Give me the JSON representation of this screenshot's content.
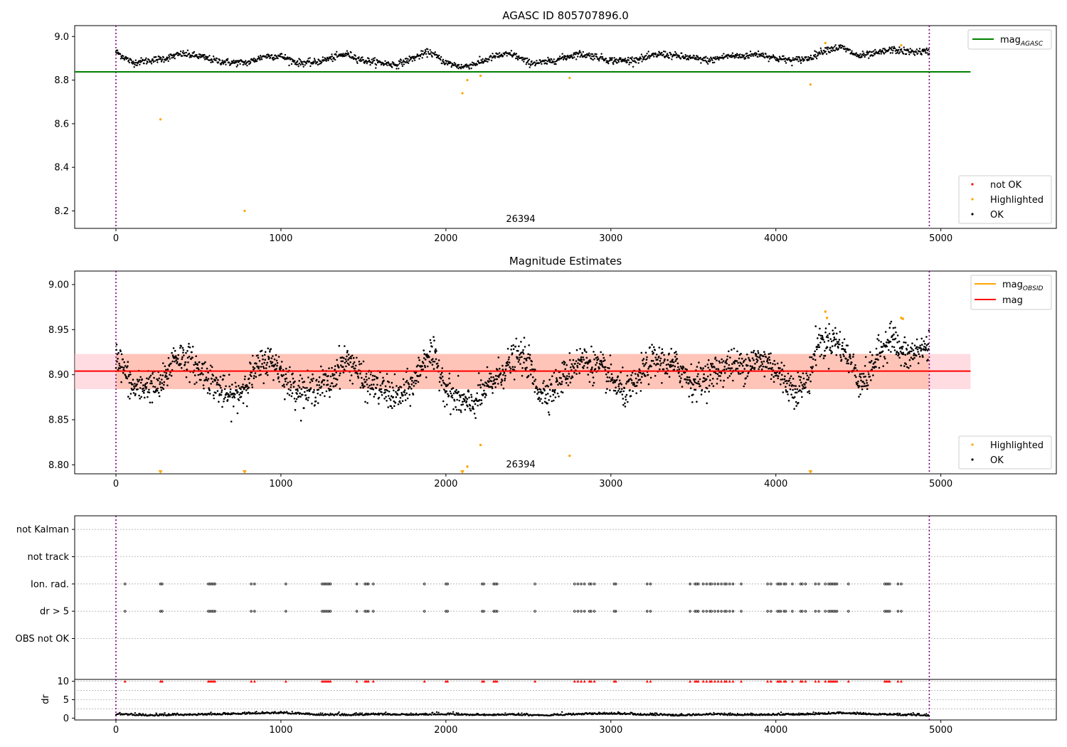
{
  "chart_data": [
    {
      "type": "scatter",
      "title": "AGASC ID 805707896.0",
      "xlabel": "",
      "ylabel": "",
      "xlim": [
        -250,
        5700
      ],
      "ylim": [
        8.12,
        9.05
      ],
      "x_ticks": [
        0,
        1000,
        2000,
        3000,
        4000,
        5000
      ],
      "y_ticks": [
        8.2,
        8.4,
        8.6,
        8.8,
        9.0
      ],
      "y_tick_labels": [
        "8.2",
        "8.4",
        "8.6",
        "8.8",
        "9.0"
      ],
      "grid": false,
      "vlines": [
        0,
        4930
      ],
      "obsid_label": {
        "x": 2450,
        "text": "26394"
      },
      "reference_lines": [
        {
          "name": "mag_AGASC",
          "label_main": "mag",
          "label_sub": "AGASC",
          "value": 8.838,
          "x_range": [
            -250,
            5180
          ],
          "color": "#008000"
        }
      ],
      "legend_upper": {
        "placement": "upper right",
        "entries": [
          {
            "label_main": "mag",
            "label_sub": "AGASC",
            "color": "#008000",
            "marker": "line"
          }
        ]
      },
      "legend_lower": {
        "placement": "lower right",
        "entries": [
          {
            "label": "not OK",
            "color": "#ff0000",
            "marker": "dot"
          },
          {
            "label": "Highlighted",
            "color": "#ffa500",
            "marker": "dot"
          },
          {
            "label": "OK",
            "color": "#000000",
            "marker": "dot"
          }
        ]
      },
      "series": [
        {
          "name": "OK",
          "color": "#000000",
          "x_range": [
            0,
            4930
          ],
          "description_trend_x": [
            0,
            100,
            200,
            300,
            400,
            500,
            600,
            700,
            800,
            900,
            1000,
            1100,
            1200,
            1300,
            1400,
            1500,
            1600,
            1700,
            1800,
            1900,
            2000,
            2100,
            2200,
            2300,
            2400,
            2500,
            2600,
            2700,
            2800,
            2900,
            3000,
            3100,
            3200,
            3300,
            3400,
            3500,
            3600,
            3700,
            3800,
            3900,
            4000,
            4100,
            4200,
            4300,
            4400,
            4500,
            4600,
            4700,
            4800,
            4900
          ],
          "trend_y": [
            8.93,
            8.88,
            8.89,
            8.9,
            8.92,
            8.91,
            8.89,
            8.88,
            8.88,
            8.91,
            8.91,
            8.88,
            8.88,
            8.9,
            8.92,
            8.89,
            8.88,
            8.87,
            8.9,
            8.93,
            8.88,
            8.86,
            8.88,
            8.91,
            8.92,
            8.88,
            8.88,
            8.9,
            8.92,
            8.91,
            8.89,
            8.89,
            8.9,
            8.92,
            8.91,
            8.9,
            8.89,
            8.91,
            8.91,
            8.92,
            8.9,
            8.89,
            8.9,
            8.94,
            8.95,
            8.91,
            8.92,
            8.94,
            8.93,
            8.93
          ]
        },
        {
          "name": "Highlighted",
          "color": "#ffa500",
          "x": [
            270,
            780,
            2100,
            2130,
            2210,
            2750,
            4210,
            4300,
            4760
          ],
          "y": [
            8.62,
            8.2,
            8.74,
            8.8,
            8.82,
            8.81,
            8.78,
            8.97,
            8.96
          ]
        }
      ]
    },
    {
      "type": "scatter",
      "title": "Magnitude Estimates",
      "xlabel": "",
      "ylabel": "",
      "xlim": [
        -250,
        5700
      ],
      "ylim": [
        8.79,
        9.015
      ],
      "x_ticks": [
        0,
        1000,
        2000,
        3000,
        4000,
        5000
      ],
      "y_ticks": [
        8.8,
        8.85,
        8.9,
        8.95,
        9.0
      ],
      "y_tick_labels": [
        "8.80",
        "8.85",
        "8.90",
        "8.95",
        "9.00"
      ],
      "grid": false,
      "vlines": [
        0,
        4930
      ],
      "obsid_label": {
        "x": 2450,
        "text": "26394"
      },
      "reference_lines": [
        {
          "name": "mag",
          "value": 8.904,
          "x_range": [
            -250,
            5180
          ],
          "color": "#ff0000"
        }
      ],
      "bands": [
        {
          "name": "mag range",
          "y_range": [
            8.884,
            8.923
          ],
          "x_range": [
            -250,
            5180
          ],
          "color": "#ffc0cb"
        },
        {
          "name": "OBSID range",
          "y_range": [
            8.884,
            8.923
          ],
          "x_range": [
            0,
            4930
          ],
          "color": "#ffa07a"
        }
      ],
      "legend_upper": {
        "placement": "upper right",
        "entries": [
          {
            "label_main": "mag",
            "label_sub": "OBSID",
            "color": "#ffa500",
            "marker": "line"
          },
          {
            "label": "mag",
            "color": "#ff0000",
            "marker": "line"
          }
        ]
      },
      "legend_lower": {
        "placement": "lower right",
        "entries": [
          {
            "label": "Highlighted",
            "color": "#ffa500",
            "marker": "dot"
          },
          {
            "label": "OK",
            "color": "#000000",
            "marker": "dot"
          }
        ]
      },
      "series": [
        {
          "name": "OK",
          "color": "#000000",
          "x_range": [
            0,
            4930
          ],
          "trend_x": [
            0,
            50,
            100,
            150,
            200,
            250,
            300,
            350,
            400,
            450,
            500,
            550,
            600,
            650,
            700,
            750,
            800,
            850,
            900,
            950,
            1000,
            1050,
            1100,
            1150,
            1200,
            1250,
            1300,
            1350,
            1400,
            1450,
            1500,
            1550,
            1600,
            1650,
            1700,
            1750,
            1800,
            1850,
            1900,
            1950,
            2000,
            2050,
            2100,
            2150,
            2200,
            2250,
            2300,
            2350,
            2400,
            2450,
            2500,
            2550,
            2600,
            2650,
            2700,
            2750,
            2800,
            2850,
            2900,
            2950,
            3000,
            3050,
            3100,
            3150,
            3200,
            3250,
            3300,
            3350,
            3400,
            3450,
            3500,
            3550,
            3600,
            3650,
            3700,
            3750,
            3800,
            3850,
            3900,
            3950,
            4000,
            4050,
            4100,
            4150,
            4200,
            4250,
            4300,
            4350,
            4400,
            4450,
            4500,
            4550,
            4600,
            4650,
            4700,
            4750,
            4800,
            4850,
            4900
          ],
          "trend_y": [
            8.925,
            8.905,
            8.885,
            8.885,
            8.89,
            8.885,
            8.895,
            8.92,
            8.92,
            8.915,
            8.905,
            8.9,
            8.89,
            8.88,
            8.875,
            8.88,
            8.895,
            8.905,
            8.915,
            8.915,
            8.905,
            8.89,
            8.885,
            8.88,
            8.885,
            8.89,
            8.89,
            8.91,
            8.915,
            8.91,
            8.89,
            8.89,
            8.885,
            8.88,
            8.875,
            8.88,
            8.89,
            8.91,
            8.925,
            8.91,
            8.885,
            8.875,
            8.87,
            8.865,
            8.875,
            8.885,
            8.895,
            8.905,
            8.915,
            8.92,
            8.915,
            8.885,
            8.88,
            8.885,
            8.895,
            8.905,
            8.915,
            8.915,
            8.91,
            8.905,
            8.895,
            8.885,
            8.88,
            8.89,
            8.905,
            8.915,
            8.915,
            8.91,
            8.91,
            8.9,
            8.89,
            8.895,
            8.9,
            8.905,
            8.91,
            8.91,
            8.91,
            8.915,
            8.915,
            8.915,
            8.905,
            8.895,
            8.885,
            8.885,
            8.895,
            8.935,
            8.935,
            8.94,
            8.93,
            8.915,
            8.895,
            8.895,
            8.915,
            8.93,
            8.945,
            8.925,
            8.92,
            8.925,
            8.93
          ]
        },
        {
          "name": "Highlighted",
          "color": "#ffa500",
          "x": [
            4300,
            4310,
            4760,
            4770,
            2210,
            2750,
            2130
          ],
          "y": [
            8.97,
            8.963,
            8.963,
            8.962,
            8.822,
            8.81,
            8.798
          ]
        },
        {
          "name": "Highlighted (below range)",
          "color": "#ffa500",
          "marker": "down-triangle",
          "x": [
            270,
            780,
            2100,
            4210
          ],
          "y": [
            8.792,
            8.792,
            8.792,
            8.792
          ]
        }
      ]
    },
    {
      "type": "scatter",
      "title": "",
      "xlabel": "",
      "ylabel": "",
      "xlim": [
        -250,
        5700
      ],
      "ylim": [
        -0.5,
        5.5
      ],
      "x_ticks": [
        0,
        1000,
        2000,
        3000,
        4000,
        5000
      ],
      "category_rows": [
        "not Kalman",
        "not track",
        "Ion. rad.",
        "dr > 5",
        "OBS not OK"
      ],
      "grid": true,
      "vlines": [
        0,
        4930
      ],
      "series": [
        {
          "name": "Ion. rad.",
          "color": "#000000",
          "x": [
            55,
            270,
            280,
            560,
            570,
            580,
            590,
            600,
            820,
            840,
            1030,
            1250,
            1260,
            1270,
            1280,
            1290,
            1300,
            1460,
            1510,
            1520,
            1530,
            1560,
            1870,
            2000,
            2010,
            2220,
            2230,
            2290,
            2300,
            2310,
            2540,
            2780,
            2800,
            2820,
            2840,
            2870,
            2880,
            2900,
            3020,
            3030,
            3220,
            3240,
            3480,
            3510,
            3520,
            3530,
            3560,
            3580,
            3600,
            3610,
            3630,
            3650,
            3670,
            3690,
            3700,
            3720,
            3740,
            3790,
            3950,
            3970,
            4010,
            4020,
            4030,
            4050,
            4060,
            4100,
            4150,
            4160,
            4180,
            4240,
            4260,
            4300,
            4320,
            4330,
            4340,
            4350,
            4360,
            4370,
            4440,
            4660,
            4670,
            4680,
            4690,
            4740,
            4760
          ]
        },
        {
          "name": "dr > 5",
          "color": "#000000",
          "x": [
            55,
            270,
            280,
            560,
            570,
            580,
            590,
            600,
            820,
            840,
            1030,
            1250,
            1260,
            1270,
            1280,
            1290,
            1300,
            1460,
            1510,
            1520,
            1530,
            1560,
            1870,
            2000,
            2010,
            2220,
            2230,
            2290,
            2300,
            2310,
            2540,
            2780,
            2800,
            2820,
            2840,
            2870,
            2880,
            2900,
            3020,
            3030,
            3220,
            3240,
            3480,
            3510,
            3520,
            3530,
            3560,
            3580,
            3600,
            3610,
            3630,
            3650,
            3670,
            3690,
            3700,
            3720,
            3740,
            3790,
            3950,
            3970,
            4010,
            4020,
            4030,
            4050,
            4060,
            4100,
            4150,
            4160,
            4180,
            4240,
            4260,
            4300,
            4320,
            4330,
            4340,
            4350,
            4360,
            4370,
            4440,
            4660,
            4670,
            4680,
            4690,
            4740,
            4760
          ]
        }
      ]
    },
    {
      "type": "scatter",
      "title": "",
      "xlabel": "",
      "ylabel": "dr",
      "xlim": [
        -250,
        5700
      ],
      "ylim": [
        -0.5,
        10.5
      ],
      "x_ticks": [
        0,
        1000,
        2000,
        3000,
        4000,
        5000
      ],
      "x_tick_labels": [
        "0",
        "1000",
        "2000",
        "3000",
        "4000",
        "5000"
      ],
      "y_ticks": [
        0,
        5,
        10
      ],
      "y_tick_labels": [
        "0",
        "5",
        "10"
      ],
      "grid": true,
      "vlines": [
        0,
        4930
      ],
      "series": [
        {
          "name": "dr",
          "color": "#000000",
          "x_range": [
            0,
            4930
          ],
          "trend_x": [
            0,
            200,
            400,
            600,
            800,
            1000,
            1200,
            1400,
            1600,
            1800,
            2000,
            2200,
            2400,
            2600,
            2800,
            3000,
            3200,
            3400,
            3600,
            3800,
            4000,
            4200,
            4400,
            4600,
            4800,
            4930
          ],
          "trend_y": [
            0.9,
            0.6,
            0.7,
            0.9,
            1.1,
            1.3,
            0.8,
            0.7,
            0.9,
            0.8,
            0.9,
            0.7,
            0.8,
            0.6,
            0.9,
            1.1,
            0.8,
            0.6,
            0.9,
            0.7,
            0.8,
            0.9,
            1.2,
            0.9,
            0.7,
            0.5
          ]
        },
        {
          "name": "dr > 10 (clipped)",
          "color": "#ff0000",
          "marker": "up-triangle",
          "x": [
            55,
            270,
            280,
            560,
            570,
            580,
            590,
            600,
            820,
            840,
            1030,
            1250,
            1260,
            1270,
            1280,
            1290,
            1300,
            1460,
            1510,
            1520,
            1530,
            1560,
            1870,
            2000,
            2010,
            2220,
            2230,
            2290,
            2300,
            2310,
            2540,
            2780,
            2800,
            2820,
            2840,
            2870,
            2880,
            2900,
            3020,
            3030,
            3220,
            3240,
            3480,
            3510,
            3520,
            3530,
            3560,
            3580,
            3600,
            3610,
            3630,
            3650,
            3670,
            3690,
            3700,
            3720,
            3740,
            3790,
            3950,
            3970,
            4010,
            4020,
            4030,
            4050,
            4060,
            4100,
            4150,
            4160,
            4180,
            4240,
            4260,
            4300,
            4320,
            4330,
            4340,
            4350,
            4360,
            4370,
            4440,
            4660,
            4670,
            4680,
            4690,
            4740,
            4760
          ],
          "y_clipped": 10
        }
      ]
    }
  ]
}
